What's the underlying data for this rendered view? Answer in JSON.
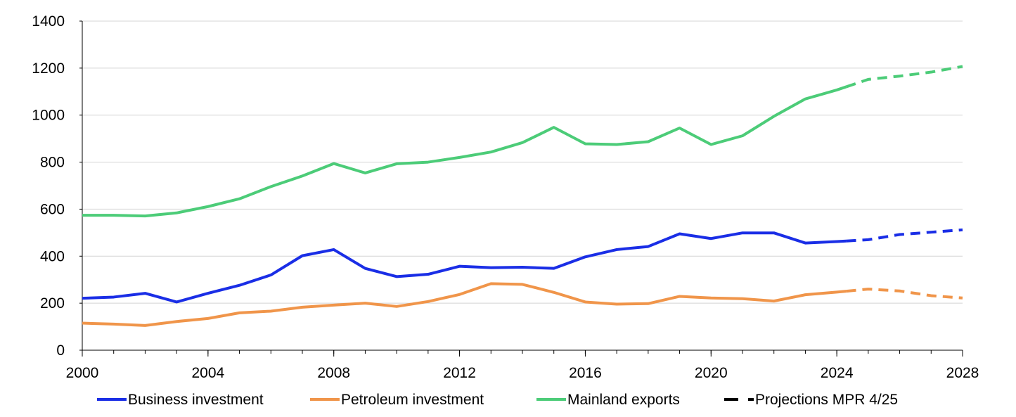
{
  "chart_data": {
    "type": "line",
    "title": "",
    "xlabel": "",
    "ylabel": "",
    "xlim": [
      2000,
      2028
    ],
    "ylim": [
      0,
      1400
    ],
    "x_ticks": [
      "2000",
      "2004",
      "2008",
      "2012",
      "2016",
      "2020",
      "2024",
      "2028"
    ],
    "y_ticks": [
      "0",
      "200",
      "400",
      "600",
      "800",
      "1000",
      "1200",
      "1400"
    ],
    "grid": "horizontal",
    "legend_position": "bottom",
    "projection_start": 2024.3,
    "series": [
      {
        "name": "Business investment",
        "color": "#1a2ee6",
        "x": [
          2000,
          2001,
          2002,
          2003,
          2004,
          2005,
          2006,
          2007,
          2008,
          2009,
          2010,
          2011,
          2012,
          2013,
          2014,
          2015,
          2016,
          2017,
          2018,
          2019,
          2020,
          2021,
          2022,
          2023,
          2024,
          2025,
          2026,
          2027,
          2028
        ],
        "values": [
          221,
          226,
          242,
          205,
          242,
          276,
          320,
          402,
          428,
          348,
          313,
          323,
          357,
          351,
          353,
          348,
          397,
          428,
          441,
          495,
          475,
          499,
          499,
          456,
          462,
          470,
          492,
          502,
          512
        ]
      },
      {
        "name": "Petroleum investment",
        "color": "#f0954a",
        "x": [
          2000,
          2001,
          2002,
          2003,
          2004,
          2005,
          2006,
          2007,
          2008,
          2009,
          2010,
          2011,
          2012,
          2013,
          2014,
          2015,
          2016,
          2017,
          2018,
          2019,
          2020,
          2021,
          2022,
          2023,
          2024,
          2025,
          2026,
          2027,
          2028
        ],
        "values": [
          115,
          111,
          105,
          122,
          135,
          159,
          166,
          183,
          192,
          200,
          186,
          207,
          237,
          283,
          280,
          246,
          205,
          196,
          198,
          229,
          222,
          219,
          209,
          236,
          247,
          260,
          252,
          232,
          222
        ]
      },
      {
        "name": "Mainland exports",
        "color": "#4ccc78",
        "x": [
          2000,
          2001,
          2002,
          2003,
          2004,
          2005,
          2006,
          2007,
          2008,
          2009,
          2010,
          2011,
          2012,
          2013,
          2014,
          2015,
          2016,
          2017,
          2018,
          2019,
          2020,
          2021,
          2022,
          2023,
          2024,
          2025,
          2026,
          2027,
          2028
        ],
        "values": [
          574,
          574,
          571,
          584,
          611,
          644,
          696,
          741,
          794,
          754,
          793,
          800,
          820,
          843,
          883,
          948,
          878,
          875,
          887,
          945,
          875,
          912,
          995,
          1069,
          1107,
          1152,
          1166,
          1183,
          1207
        ]
      }
    ],
    "legend": [
      {
        "label": "Business investment",
        "color": "#1a2ee6",
        "style": "solid"
      },
      {
        "label": "Petroleum investment",
        "color": "#f0954a",
        "style": "solid"
      },
      {
        "label": "Mainland exports",
        "color": "#4ccc78",
        "style": "solid"
      },
      {
        "label": "Projections MPR 4/25",
        "color": "#000000",
        "style": "dashed"
      }
    ]
  }
}
